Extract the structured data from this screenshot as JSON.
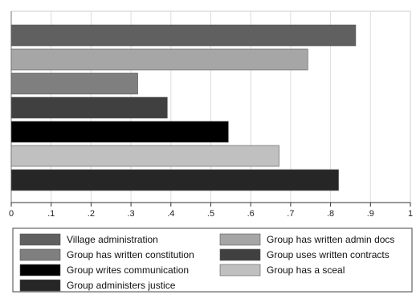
{
  "chart_data": {
    "type": "bar",
    "orientation": "horizontal",
    "xlim": [
      0,
      1
    ],
    "x_ticks": [
      "0",
      ".1",
      ".2",
      ".3",
      ".4",
      ".5",
      ".6",
      ".7",
      ".8",
      ".9",
      "1"
    ],
    "grid": true,
    "legend_position": "bottom",
    "title": "",
    "xlabel": "",
    "ylabel": "",
    "series": [
      {
        "name": "Village administration",
        "value": 0.863,
        "color": "#606060"
      },
      {
        "name": "Group has written admin docs",
        "value": 0.743,
        "color": "#a6a6a6"
      },
      {
        "name": "Group has written constitution",
        "value": 0.317,
        "color": "#7f7f7f"
      },
      {
        "name": "Group uses written contracts",
        "value": 0.391,
        "color": "#404040"
      },
      {
        "name": "Group writes communication",
        "value": 0.544,
        "color": "#000000"
      },
      {
        "name": "Group has a sceal",
        "value": 0.671,
        "color": "#c0c0c0"
      },
      {
        "name": "Group administers justice",
        "value": 0.82,
        "color": "#262626"
      }
    ],
    "legend_order": [
      "Village administration",
      "Group has written admin docs",
      "Group has written constitution",
      "Group uses written contracts",
      "Group writes communication",
      "Group has a sceal",
      "Group administers justice"
    ]
  }
}
